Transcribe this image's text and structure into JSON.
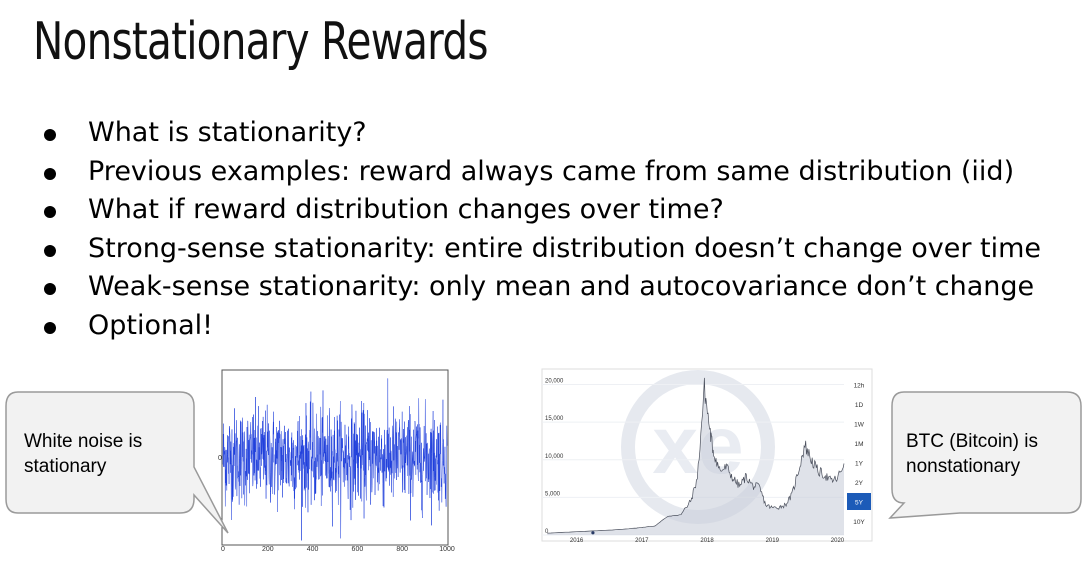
{
  "slide": {
    "title": "Nonstationary Rewards",
    "bullets": [
      "What is stationarity?",
      "Previous examples: reward always came from same distribution (iid)",
      "What if reward distribution changes over time?",
      "Strong-sense stationarity: entire distribution doesn’t change over time",
      "Weak-sense stationarity: only mean and autocovariance don’t change",
      "Optional!"
    ],
    "callout_left": {
      "line1": "White noise is",
      "line2": "stationary"
    },
    "callout_right": {
      "line1": "BTC (Bitcoin) is",
      "line2": "nonstationary"
    }
  },
  "chart_data": [
    {
      "type": "line",
      "x_ticks": [
        "0",
        "200",
        "400",
        "600",
        "800",
        "1000"
      ],
      "y_ticks": [
        "0"
      ],
      "xlim": [
        0,
        1000
      ],
      "series_color": "#1f3fdc",
      "description_values": {
        "mean": 0,
        "n_points": 1000
      }
    },
    {
      "type": "area",
      "x_ticks": [
        "2016",
        "2017",
        "2018",
        "2019",
        "2020"
      ],
      "y_ticks": [
        "0",
        "5,000",
        "10,000",
        "15,000",
        "20,000"
      ],
      "ylim": [
        0,
        21000
      ],
      "watermark": "xe",
      "range_buttons": [
        "12h",
        "1D",
        "1W",
        "1M",
        "1Y",
        "2Y",
        "5Y",
        "10Y"
      ],
      "selected_range": "5Y",
      "accent_color": "#1c5bb8",
      "series": [
        {
          "x": [
            2015.55,
            2016.0,
            2016.5,
            2016.9,
            2017.0,
            2017.2,
            2017.4,
            2017.6,
            2017.75,
            2017.85,
            2017.96,
            2018.05,
            2018.1,
            2018.2,
            2018.3,
            2018.4,
            2018.5,
            2018.6,
            2018.7,
            2018.8,
            2018.9,
            2019.0,
            2019.1,
            2019.2,
            2019.3,
            2019.4,
            2019.5,
            2019.6,
            2019.7,
            2019.8,
            2019.9,
            2020.0,
            2020.1
          ],
          "y": [
            250,
            430,
            650,
            900,
            1000,
            1200,
            2500,
            2700,
            4500,
            7500,
            19500,
            13500,
            11000,
            8500,
            9000,
            7500,
            6500,
            7800,
            6500,
            6400,
            4000,
            3600,
            3700,
            4000,
            5300,
            8500,
            12000,
            10000,
            8500,
            8000,
            7200,
            7500,
            9500
          ]
        }
      ]
    }
  ]
}
